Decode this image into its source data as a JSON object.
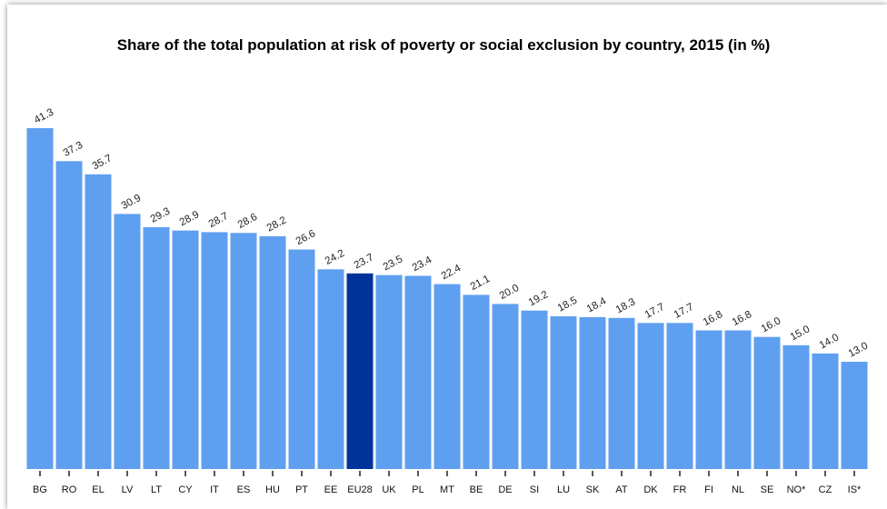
{
  "colors": {
    "bar": "#5f9ff0",
    "highlight": "#003399",
    "axis": "#111111"
  },
  "chart_data": {
    "type": "bar",
    "title": "Share of the total population at risk of poverty or social exclusion by country, 2015 (in %)",
    "categories": [
      "BG",
      "RO",
      "EL",
      "LV",
      "LT",
      "CY",
      "IT",
      "ES",
      "HU",
      "PT",
      "EE",
      "EU28",
      "UK",
      "PL",
      "MT",
      "BE",
      "DE",
      "SI",
      "LU",
      "SK",
      "AT",
      "DK",
      "FR",
      "FI",
      "NL",
      "SE",
      "NO*",
      "CZ",
      "IS*"
    ],
    "values": [
      41.3,
      37.3,
      35.7,
      30.9,
      29.3,
      28.9,
      28.7,
      28.6,
      28.2,
      26.6,
      24.2,
      23.7,
      23.5,
      23.4,
      22.4,
      21.1,
      20.0,
      19.2,
      18.5,
      18.4,
      18.3,
      17.7,
      17.7,
      16.8,
      16.8,
      16.0,
      15.0,
      14.0,
      13.0
    ],
    "data_labels": [
      "41.3",
      "37.3",
      "35.7",
      "30.9",
      "29.3",
      "28.9",
      "28.7",
      "28.6",
      "28.2",
      "26.6",
      "24.2",
      "23.7",
      "23.5",
      "23.4",
      "22.4",
      "21.1",
      "20.0",
      "19.2",
      "18.5",
      "18.4",
      "18.3",
      "17.7",
      "17.7",
      "16.8",
      "16.8",
      "16.0",
      "15.0",
      "14.0",
      "13.0"
    ],
    "highlight_category": "EU28",
    "xlabel": "",
    "ylabel": "",
    "ylim": [
      0,
      41.3
    ],
    "grid": false,
    "legend": "none"
  }
}
